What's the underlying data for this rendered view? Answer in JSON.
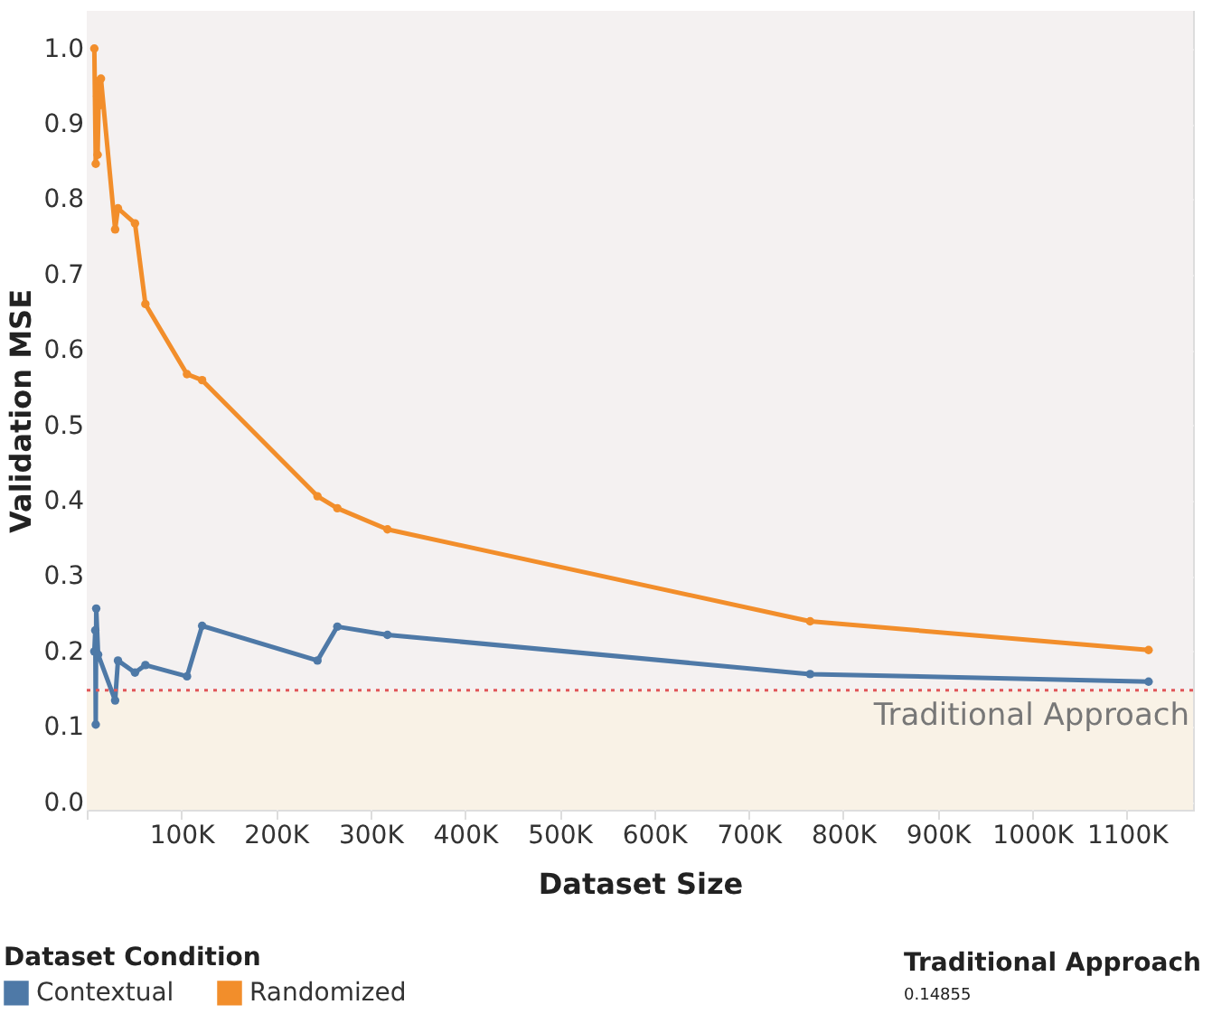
{
  "chart_data": {
    "type": "line",
    "xlabel": "Dataset Size",
    "ylabel": "Validation MSE",
    "legend_title": "Dataset Condition",
    "xlim": [
      0,
      1170000
    ],
    "ylim": [
      -0.01,
      1.05
    ],
    "xticks": [
      {
        "value": 0,
        "label": null
      },
      {
        "value": 100000,
        "label": "100K"
      },
      {
        "value": 200000,
        "label": "200K"
      },
      {
        "value": 300000,
        "label": "300K"
      },
      {
        "value": 400000,
        "label": "400K"
      },
      {
        "value": 500000,
        "label": "500K"
      },
      {
        "value": 600000,
        "label": "600K"
      },
      {
        "value": 700000,
        "label": "700K"
      },
      {
        "value": 800000,
        "label": "800K"
      },
      {
        "value": 900000,
        "label": "900K"
      },
      {
        "value": 1000000,
        "label": "1000K"
      },
      {
        "value": 1100000,
        "label": "1100K"
      }
    ],
    "yticks": [
      {
        "value": 0,
        "label": "0.0"
      },
      0.1,
      0.2,
      0.3,
      0.4,
      0.5,
      0.6,
      0.7,
      0.8,
      0.9,
      {
        "value": 1,
        "label": "1.0"
      }
    ],
    "grid": true,
    "legend": "bottom left",
    "marker": "circle",
    "line_style": "solid",
    "series": [
      {
        "name": "Contextual",
        "color": "#4e79a7",
        "x": [
          8000,
          9000,
          9500,
          10000,
          12000,
          30000,
          33000,
          51000,
          62000,
          106000,
          122000,
          244000,
          265000,
          318000,
          765000,
          1123000
        ],
        "values": [
          0.2,
          0.228,
          0.103,
          0.257,
          0.196,
          0.135,
          0.188,
          0.172,
          0.182,
          0.167,
          0.234,
          0.188,
          0.233,
          0.222,
          0.17,
          0.16
        ]
      },
      {
        "name": "Randomized",
        "color": "#f28e2b",
        "x": [
          8000,
          9500,
          11000,
          11500,
          13000,
          14500,
          15000,
          30000,
          33000,
          51000,
          62000,
          106000,
          122000,
          244000,
          265000,
          318000,
          765000,
          1123000
        ],
        "values": [
          1.0,
          0.847,
          0.937,
          0.859,
          0.957,
          0.925,
          0.96,
          0.76,
          0.788,
          0.768,
          0.661,
          0.568,
          0.56,
          0.406,
          0.39,
          0.362,
          0.24,
          0.202
        ]
      }
    ],
    "bands": [
      {
        "axis": "y",
        "from": -0.01,
        "to": 0.14855,
        "color": "#f9f2e6"
      },
      {
        "axis": "y",
        "from": 0.14855,
        "to": 1.05,
        "color": "#f4f1f1"
      }
    ],
    "ref_lines": [
      {
        "axis": "y",
        "value": 0.14855,
        "label": "Traditional Approach",
        "color": "#e15759",
        "line_style": "dotted"
      }
    ],
    "annotations": [
      "Traditional Approach",
      "0.14855"
    ]
  }
}
